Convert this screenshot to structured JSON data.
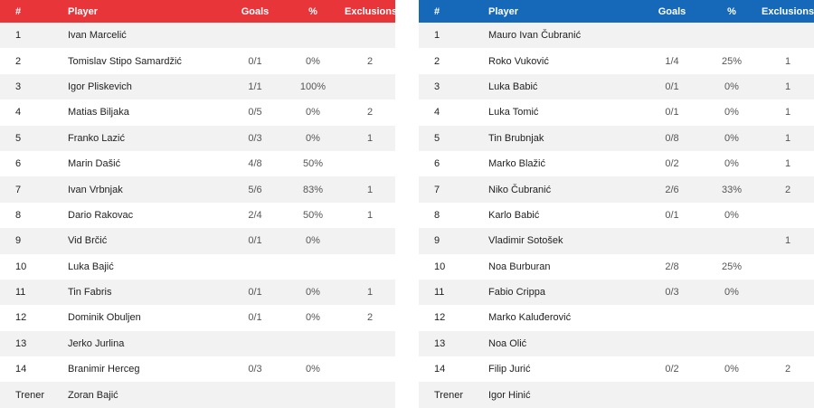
{
  "headers": {
    "num": "#",
    "player": "Player",
    "goals": "Goals",
    "pct": "%",
    "exclusions": "Exclusions"
  },
  "colors": {
    "left_header": "#e8353a",
    "right_header": "#1669b8"
  },
  "left_team": {
    "rows": [
      {
        "num": "1",
        "player": "Ivan Marcelić",
        "goals": "",
        "pct": "",
        "exclusions": ""
      },
      {
        "num": "2",
        "player": "Tomislav Stipo Samardžić",
        "goals": "0/1",
        "pct": "0%",
        "exclusions": "2"
      },
      {
        "num": "3",
        "player": "Igor Pliskevich",
        "goals": "1/1",
        "pct": "100%",
        "exclusions": ""
      },
      {
        "num": "4",
        "player": "Matias Biljaka",
        "goals": "0/5",
        "pct": "0%",
        "exclusions": "2"
      },
      {
        "num": "5",
        "player": "Franko Lazić",
        "goals": "0/3",
        "pct": "0%",
        "exclusions": "1"
      },
      {
        "num": "6",
        "player": "Marin Dašić",
        "goals": "4/8",
        "pct": "50%",
        "exclusions": ""
      },
      {
        "num": "7",
        "player": "Ivan Vrbnjak",
        "goals": "5/6",
        "pct": "83%",
        "exclusions": "1"
      },
      {
        "num": "8",
        "player": "Dario Rakovac",
        "goals": "2/4",
        "pct": "50%",
        "exclusions": "1"
      },
      {
        "num": "9",
        "player": "Vid Brčić",
        "goals": "0/1",
        "pct": "0%",
        "exclusions": ""
      },
      {
        "num": "10",
        "player": "Luka Bajić",
        "goals": "",
        "pct": "",
        "exclusions": ""
      },
      {
        "num": "11",
        "player": "Tin Fabris",
        "goals": "0/1",
        "pct": "0%",
        "exclusions": "1"
      },
      {
        "num": "12",
        "player": "Dominik Obuljen",
        "goals": "0/1",
        "pct": "0%",
        "exclusions": "2"
      },
      {
        "num": "13",
        "player": "Jerko Jurlina",
        "goals": "",
        "pct": "",
        "exclusions": ""
      },
      {
        "num": "14",
        "player": "Branimir Herceg",
        "goals": "0/3",
        "pct": "0%",
        "exclusions": ""
      },
      {
        "num": "Trener",
        "player": "Zoran Bajić",
        "goals": "",
        "pct": "",
        "exclusions": ""
      }
    ]
  },
  "right_team": {
    "rows": [
      {
        "num": "1",
        "player": "Mauro Ivan Čubranić",
        "goals": "",
        "pct": "",
        "exclusions": ""
      },
      {
        "num": "2",
        "player": "Roko Vuković",
        "goals": "1/4",
        "pct": "25%",
        "exclusions": "1"
      },
      {
        "num": "3",
        "player": "Luka Babić",
        "goals": "0/1",
        "pct": "0%",
        "exclusions": "1"
      },
      {
        "num": "4",
        "player": "Luka Tomić",
        "goals": "0/1",
        "pct": "0%",
        "exclusions": "1"
      },
      {
        "num": "5",
        "player": "Tin Brubnjak",
        "goals": "0/8",
        "pct": "0%",
        "exclusions": "1"
      },
      {
        "num": "6",
        "player": "Marko Blažić",
        "goals": "0/2",
        "pct": "0%",
        "exclusions": "1"
      },
      {
        "num": "7",
        "player": "Niko Čubranić",
        "goals": "2/6",
        "pct": "33%",
        "exclusions": "2"
      },
      {
        "num": "8",
        "player": "Karlo Babić",
        "goals": "0/1",
        "pct": "0%",
        "exclusions": ""
      },
      {
        "num": "9",
        "player": "Vladimir Sotošek",
        "goals": "",
        "pct": "",
        "exclusions": "1"
      },
      {
        "num": "10",
        "player": "Noa Burburan",
        "goals": "2/8",
        "pct": "25%",
        "exclusions": ""
      },
      {
        "num": "11",
        "player": "Fabio Crippa",
        "goals": "0/3",
        "pct": "0%",
        "exclusions": ""
      },
      {
        "num": "12",
        "player": "Marko Kaluđerović",
        "goals": "",
        "pct": "",
        "exclusions": ""
      },
      {
        "num": "13",
        "player": "Noa Olić",
        "goals": "",
        "pct": "",
        "exclusions": ""
      },
      {
        "num": "14",
        "player": "Filip Jurić",
        "goals": "0/2",
        "pct": "0%",
        "exclusions": "2"
      },
      {
        "num": "Trener",
        "player": "Igor Hinić",
        "goals": "",
        "pct": "",
        "exclusions": ""
      }
    ]
  }
}
